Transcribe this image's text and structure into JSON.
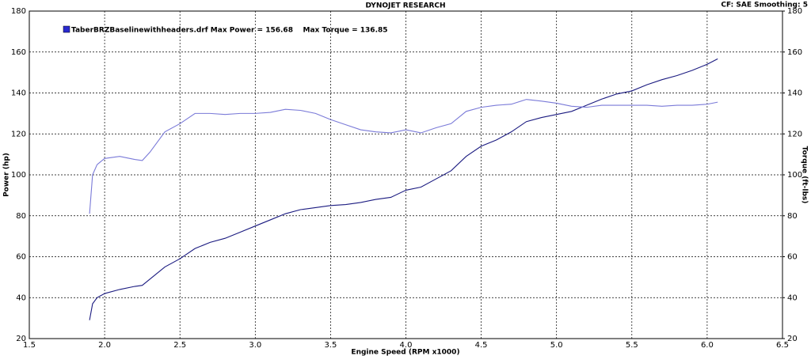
{
  "chart_data": {
    "type": "line",
    "title": "DYNOJET RESEARCH",
    "subtitle": "CF: SAE  Smoothing: 5",
    "legend_text": "TaberBRZBaselinewithheaders.drf Max Power = 156.68    Max Torque = 136.85",
    "xlabel": "Engine Speed (RPM x1000)",
    "ylabel": "Power (hp)",
    "y2label": "Torque (ft-lbs)",
    "x": [
      1.9,
      1.92,
      1.95,
      2.0,
      2.1,
      2.2,
      2.25,
      2.3,
      2.4,
      2.5,
      2.6,
      2.7,
      2.8,
      2.9,
      3.0,
      3.1,
      3.2,
      3.3,
      3.4,
      3.5,
      3.6,
      3.7,
      3.8,
      3.9,
      4.0,
      4.1,
      4.2,
      4.3,
      4.4,
      4.5,
      4.6,
      4.7,
      4.8,
      4.9,
      5.0,
      5.1,
      5.2,
      5.3,
      5.4,
      5.5,
      5.6,
      5.7,
      5.8,
      5.9,
      6.0,
      6.07
    ],
    "series": [
      {
        "color": "#1a1a80",
        "values": [
          29,
          37,
          40,
          42,
          44,
          45.5,
          46,
          49,
          55,
          59,
          64,
          67,
          69,
          72,
          75,
          78,
          81,
          83,
          84,
          85,
          85.5,
          86.5,
          88,
          89,
          92.5,
          94,
          98,
          102,
          109,
          114,
          117,
          121,
          126,
          128,
          129.5,
          131,
          134,
          137,
          139.5,
          141,
          144,
          146.5,
          148.5,
          151,
          154,
          156.68
        ]
      },
      {
        "color": "#7a7ad8",
        "axis": "y2",
        "values": [
          81,
          100,
          105,
          108,
          109,
          107.5,
          107,
          111,
          121,
          125,
          130,
          130,
          129.5,
          130,
          130,
          130.5,
          132,
          131.5,
          130,
          127,
          124.5,
          122,
          121,
          120.5,
          122,
          120.5,
          123,
          125,
          131,
          133,
          134,
          134.5,
          136.85,
          136,
          135,
          133.5,
          133,
          134,
          134,
          134,
          134,
          133.5,
          134,
          134,
          134.5,
          135.5
        ]
      }
    ],
    "xlim": [
      1.5,
      6.5
    ],
    "xticks": [
      1.5,
      {
        "value": 2,
        "label": "2.0"
      },
      2.5,
      {
        "value": 3,
        "label": "3.0"
      },
      3.5,
      {
        "value": 4,
        "label": "4.0"
      },
      4.5,
      {
        "value": 5,
        "label": "5.0"
      },
      5.5,
      {
        "value": 6,
        "label": "6.0"
      },
      6.5
    ],
    "ylim": [
      20,
      180
    ],
    "yticks": [
      20,
      40,
      60,
      80,
      100,
      120,
      140,
      160,
      180
    ],
    "y2lim": [
      20,
      180
    ],
    "y2ticks": [
      20,
      40,
      60,
      80,
      100,
      120,
      140,
      160,
      180
    ],
    "grid": true
  }
}
